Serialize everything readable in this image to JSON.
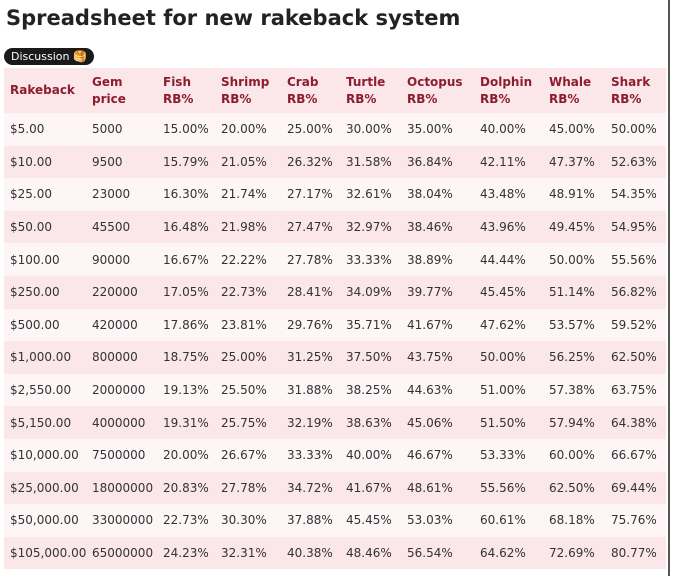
{
  "header": {
    "title": "Spreadsheet for new rakeback system",
    "tag": "Discussion 🥞"
  },
  "table": {
    "headers": [
      "Rakeback",
      "Gem price",
      "Fish RB%",
      "Shrimp RB%",
      "Crab RB%",
      "Turtle RB%",
      "Octopus RB%",
      "Dolphin RB%",
      "Whale RB%",
      "Shark RB%"
    ],
    "rows": [
      [
        "$5.00",
        "5000",
        "15.00%",
        "20.00%",
        "25.00%",
        "30.00%",
        "35.00%",
        "40.00%",
        "45.00%",
        "50.00%"
      ],
      [
        "$10.00",
        "9500",
        "15.79%",
        "21.05%",
        "26.32%",
        "31.58%",
        "36.84%",
        "42.11%",
        "47.37%",
        "52.63%"
      ],
      [
        "$25.00",
        "23000",
        "16.30%",
        "21.74%",
        "27.17%",
        "32.61%",
        "38.04%",
        "43.48%",
        "48.91%",
        "54.35%"
      ],
      [
        "$50.00",
        "45500",
        "16.48%",
        "21.98%",
        "27.47%",
        "32.97%",
        "38.46%",
        "43.96%",
        "49.45%",
        "54.95%"
      ],
      [
        "$100.00",
        "90000",
        "16.67%",
        "22.22%",
        "27.78%",
        "33.33%",
        "38.89%",
        "44.44%",
        "50.00%",
        "55.56%"
      ],
      [
        "$250.00",
        "220000",
        "17.05%",
        "22.73%",
        "28.41%",
        "34.09%",
        "39.77%",
        "45.45%",
        "51.14%",
        "56.82%"
      ],
      [
        "$500.00",
        "420000",
        "17.86%",
        "23.81%",
        "29.76%",
        "35.71%",
        "41.67%",
        "47.62%",
        "53.57%",
        "59.52%"
      ],
      [
        "$1,000.00",
        "800000",
        "18.75%",
        "25.00%",
        "31.25%",
        "37.50%",
        "43.75%",
        "50.00%",
        "56.25%",
        "62.50%"
      ],
      [
        "$2,550.00",
        "2000000",
        "19.13%",
        "25.50%",
        "31.88%",
        "38.25%",
        "44.63%",
        "51.00%",
        "57.38%",
        "63.75%"
      ],
      [
        "$5,150.00",
        "4000000",
        "19.31%",
        "25.75%",
        "32.19%",
        "38.63%",
        "45.06%",
        "51.50%",
        "57.94%",
        "64.38%"
      ],
      [
        "$10,000.00",
        "7500000",
        "20.00%",
        "26.67%",
        "33.33%",
        "40.00%",
        "46.67%",
        "53.33%",
        "60.00%",
        "66.67%"
      ],
      [
        "$25,000.00",
        "18000000",
        "20.83%",
        "27.78%",
        "34.72%",
        "41.67%",
        "48.61%",
        "55.56%",
        "62.50%",
        "69.44%"
      ],
      [
        "$50,000.00",
        "33000000",
        "22.73%",
        "30.30%",
        "37.88%",
        "45.45%",
        "53.03%",
        "60.61%",
        "68.18%",
        "75.76%"
      ],
      [
        "$105,000.00",
        "65000000",
        "24.23%",
        "32.31%",
        "40.38%",
        "48.46%",
        "56.54%",
        "64.62%",
        "72.69%",
        "80.77%"
      ]
    ]
  }
}
